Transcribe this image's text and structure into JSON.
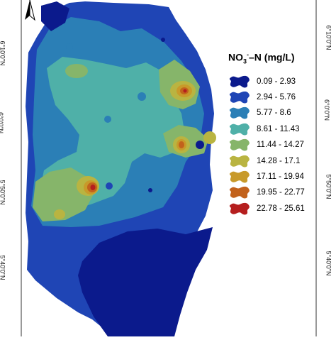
{
  "map": {
    "latitude_labels": [
      "6°10'0\"N",
      "6°0'0\"N",
      "5°50'0\"N",
      "5°40'0\"N"
    ],
    "north_arrow_icon": "north-arrow-icon",
    "background_color": "#ffffff"
  },
  "legend": {
    "title_main": "NO",
    "title_sub": "3",
    "title_sup": "-",
    "title_rest": "–N (mg/L)",
    "classes": [
      {
        "label": "0.09 - 2.93",
        "color": "#0b1a8c"
      },
      {
        "label": "2.94 - 5.76",
        "color": "#1f45b5"
      },
      {
        "label": "5.77 - 8.6",
        "color": "#2b7fb6"
      },
      {
        "label": "8.61 - 11.43",
        "color": "#4fb0a8"
      },
      {
        "label": "11.44 - 14.27",
        "color": "#86b56a"
      },
      {
        "label": "14.28 - 17.1",
        "color": "#b9b441"
      },
      {
        "label": "17.11 - 19.94",
        "color": "#c89a2a"
      },
      {
        "label": "19.95 - 22.77",
        "color": "#c2621c"
      },
      {
        "label": "22.78 - 25.61",
        "color": "#b51e1e"
      }
    ]
  }
}
